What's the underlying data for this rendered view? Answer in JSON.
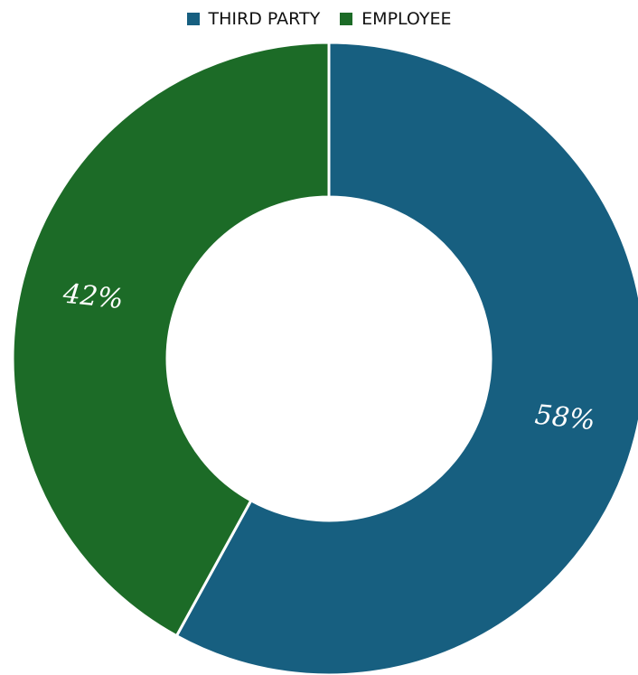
{
  "chart_data": {
    "type": "pie",
    "variant": "donut",
    "legend_position": "top",
    "categories": [
      "THIRD PARTY",
      "EMPLOYEE"
    ],
    "values": [
      58,
      42
    ],
    "labels": [
      "58%",
      "42%"
    ],
    "colors": [
      "#175F80",
      "#1C6B27"
    ]
  }
}
